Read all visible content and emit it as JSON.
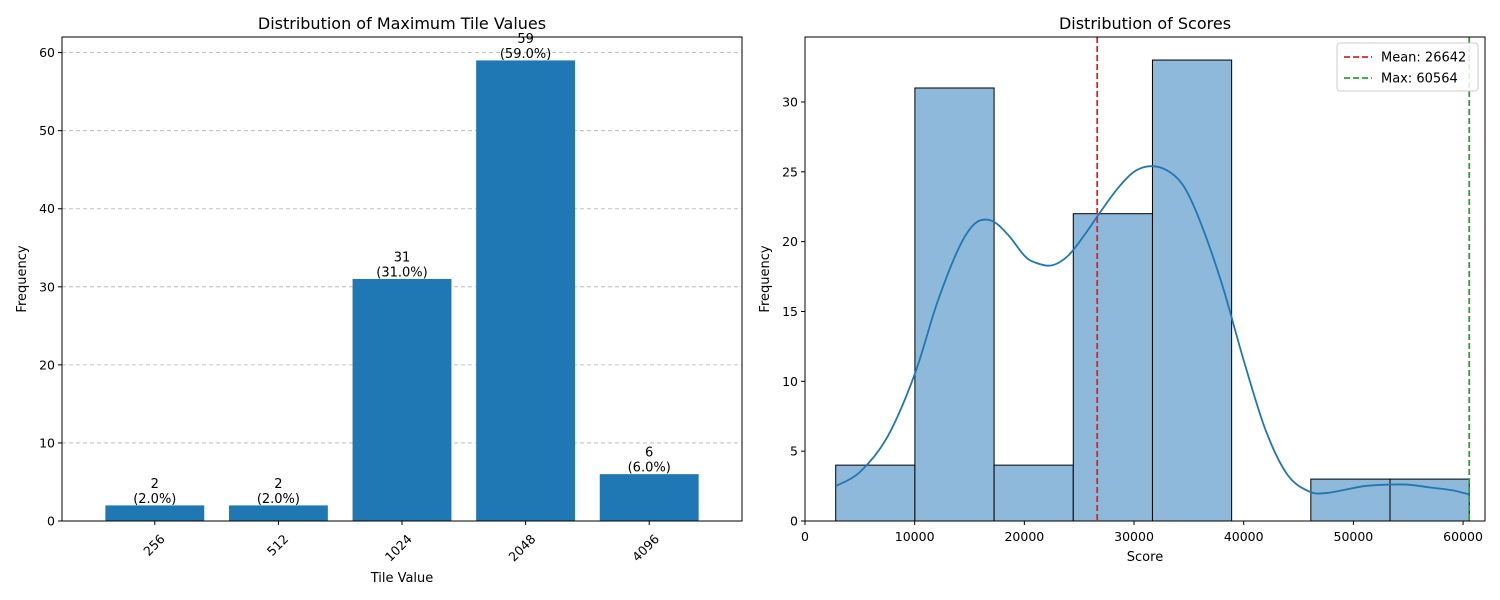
{
  "chart_data": [
    {
      "type": "bar",
      "title": "Distribution of Maximum Tile Values",
      "xlabel": "Tile Value",
      "ylabel": "Frequency",
      "categories": [
        "256",
        "512",
        "1024",
        "2048",
        "4096"
      ],
      "values": [
        2,
        2,
        31,
        59,
        6
      ],
      "data_labels": [
        {
          "count": "2",
          "pct": "(2.0%)"
        },
        {
          "count": "2",
          "pct": "(2.0%)"
        },
        {
          "count": "31",
          "pct": "(31.0%)"
        },
        {
          "count": "59",
          "pct": "(59.0%)"
        },
        {
          "count": "6",
          "pct": "(6.0%)"
        }
      ],
      "ylim": [
        0,
        62
      ],
      "yticks": [
        0,
        10,
        20,
        30,
        40,
        50,
        60
      ],
      "grid": "y-dashed",
      "bar_color": "#1f77b4",
      "tick_rotation": 45
    },
    {
      "type": "histogram",
      "title": "Distribution of Scores",
      "xlabel": "Score",
      "ylabel": "Frequency",
      "bins": [
        {
          "x0": 2800,
          "x1": 10020,
          "count": 4
        },
        {
          "x0": 10020,
          "x1": 17240,
          "count": 31
        },
        {
          "x0": 17240,
          "x1": 24460,
          "count": 4
        },
        {
          "x0": 24460,
          "x1": 31680,
          "count": 22
        },
        {
          "x0": 31680,
          "x1": 38900,
          "count": 33
        },
        {
          "x0": 38900,
          "x1": 46120,
          "count": 0
        },
        {
          "x0": 46120,
          "x1": 53340,
          "count": 3
        },
        {
          "x0": 53340,
          "x1": 60564,
          "count": 3
        }
      ],
      "kde": [
        [
          2800,
          2.5
        ],
        [
          5000,
          3.5
        ],
        [
          7500,
          6.0
        ],
        [
          10000,
          10.5
        ],
        [
          12000,
          15.5
        ],
        [
          14000,
          19.5
        ],
        [
          15500,
          21.3
        ],
        [
          17000,
          21.5
        ],
        [
          18500,
          20.5
        ],
        [
          20000,
          19.0
        ],
        [
          21000,
          18.5
        ],
        [
          22500,
          18.3
        ],
        [
          24000,
          19.0
        ],
        [
          25500,
          20.5
        ],
        [
          27000,
          22.2
        ],
        [
          28500,
          23.8
        ],
        [
          30000,
          25.0
        ],
        [
          31500,
          25.4
        ],
        [
          33000,
          25.1
        ],
        [
          34500,
          24.0
        ],
        [
          36000,
          21.5
        ],
        [
          38000,
          17.0
        ],
        [
          40000,
          11.5
        ],
        [
          42000,
          6.5
        ],
        [
          44000,
          3.3
        ],
        [
          46000,
          2.1
        ],
        [
          47500,
          2.0
        ],
        [
          49000,
          2.2
        ],
        [
          51000,
          2.5
        ],
        [
          53000,
          2.6
        ],
        [
          55000,
          2.6
        ],
        [
          57000,
          2.4
        ],
        [
          59000,
          2.2
        ],
        [
          60564,
          1.9
        ]
      ],
      "vlines": [
        {
          "label": "Mean: 26642",
          "value": 26642,
          "color": "#d62728"
        },
        {
          "label": "Max: 60564",
          "value": 60564,
          "color": "#2ca02c"
        }
      ],
      "xlim": [
        0,
        62000
      ],
      "ylim": [
        0,
        34.65
      ],
      "xticks": [
        0,
        10000,
        20000,
        30000,
        40000,
        50000,
        60000
      ],
      "yticks": [
        0,
        5,
        10,
        15,
        20,
        25,
        30
      ],
      "bar_color": "#8fb9db",
      "line_color": "#1f77b4",
      "legend": "top-right"
    }
  ]
}
